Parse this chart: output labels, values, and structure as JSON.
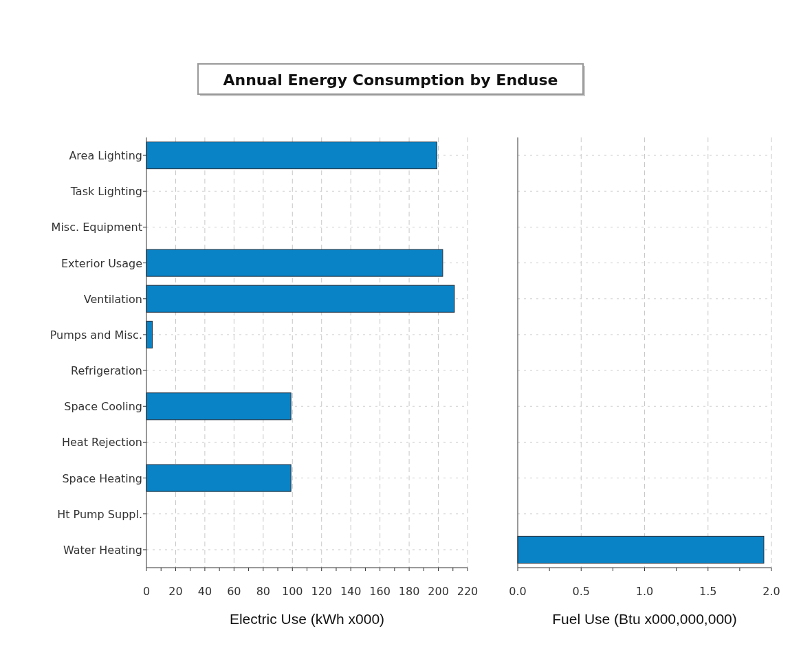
{
  "chart_data": [
    {
      "type": "bar",
      "title": "Annual Energy Consumption by Enduse",
      "orientation": "horizontal",
      "categories": [
        "Area Lighting",
        "Task Lighting",
        "Misc. Equipment",
        "Exterior Usage",
        "Ventilation",
        "Pumps and Misc.",
        "Refrigeration",
        "Space Cooling",
        "Heat Rejection",
        "Space Heating",
        "Ht Pump Suppl.",
        "Water Heating"
      ],
      "values": [
        199,
        0,
        0,
        203,
        211,
        4,
        0,
        99,
        0,
        99,
        0,
        0
      ],
      "color": "#0a83c6",
      "xlabel": "Electric Use (kWh x000)",
      "xlim": [
        0,
        220
      ],
      "xticks": [
        0,
        {
          "value": 10,
          "label": null
        },
        20,
        {
          "value": 30,
          "label": null
        },
        40,
        {
          "value": 50,
          "label": null
        },
        60,
        {
          "value": 70,
          "label": null
        },
        80,
        {
          "value": 90,
          "label": null
        },
        100,
        {
          "value": 110,
          "label": null
        },
        120,
        {
          "value": 130,
          "label": null
        },
        140,
        {
          "value": 150,
          "label": null
        },
        160,
        {
          "value": 170,
          "label": null
        },
        180,
        {
          "value": 190,
          "label": null
        },
        200,
        {
          "value": 210,
          "label": null
        },
        220
      ],
      "grid": true
    },
    {
      "type": "bar",
      "orientation": "horizontal",
      "categories": [
        null,
        null,
        null,
        null,
        null,
        null,
        null,
        null,
        null,
        null,
        null,
        null
      ],
      "values": [
        0,
        0,
        0,
        0,
        0,
        0,
        0,
        0,
        0,
        0,
        0,
        1.94
      ],
      "color": "#0a83c6",
      "xlabel": "Fuel Use (Btu x000,000,000)",
      "xlim": [
        0,
        2
      ],
      "xticks": [
        {
          "value": 0,
          "label": "0.0"
        },
        {
          "value": 0.25,
          "label": null
        },
        {
          "value": 0.5,
          "label": "0.5"
        },
        {
          "value": 0.75,
          "label": null
        },
        {
          "value": 1,
          "label": "1.0"
        },
        {
          "value": 1.25,
          "label": null
        },
        {
          "value": 1.5,
          "label": "1.5"
        },
        {
          "value": 1.75,
          "label": null
        },
        {
          "value": 2,
          "label": "2.0"
        }
      ],
      "grid": true,
      "tick_labels": "x"
    }
  ]
}
